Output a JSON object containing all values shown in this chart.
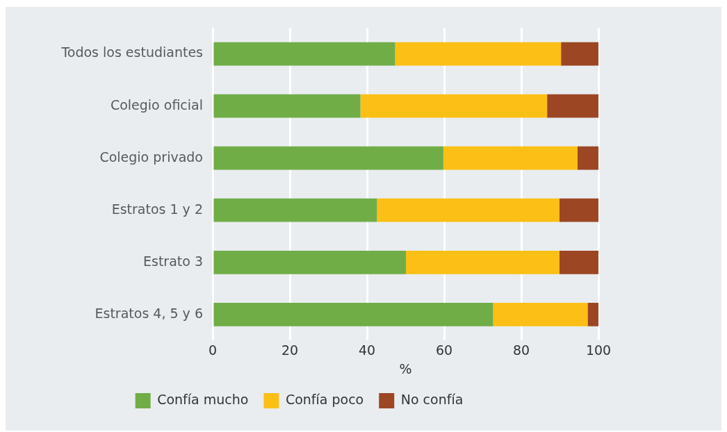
{
  "chart_data": {
    "type": "bar",
    "orientation": "horizontal",
    "stacked": true,
    "xlabel": "%",
    "categories": [
      "Todos los estudiantes",
      "Colegio oficial",
      "Colegio privado",
      "Estratos 1 y 2",
      "Estrato 3",
      "Estratos 4, 5 y 6"
    ],
    "series": [
      {
        "name": "Confía mucho",
        "color": "#70ad47",
        "values": [
          47.3,
          38.3,
          59.8,
          42.6,
          50.1,
          72.7
        ]
      },
      {
        "name": "Confía poco",
        "color": "#fcbf15",
        "values": [
          43.0,
          48.4,
          34.8,
          47.3,
          39.8,
          24.5
        ]
      },
      {
        "name": "No confía",
        "color": "#9c4624",
        "values": [
          9.7,
          13.3,
          5.4,
          10.1,
          10.1,
          2.8
        ]
      }
    ],
    "xlim": [
      0,
      100
    ],
    "xticks": [
      0,
      20,
      40,
      60,
      80,
      100
    ],
    "grid": "x",
    "legend": "bottom"
  }
}
